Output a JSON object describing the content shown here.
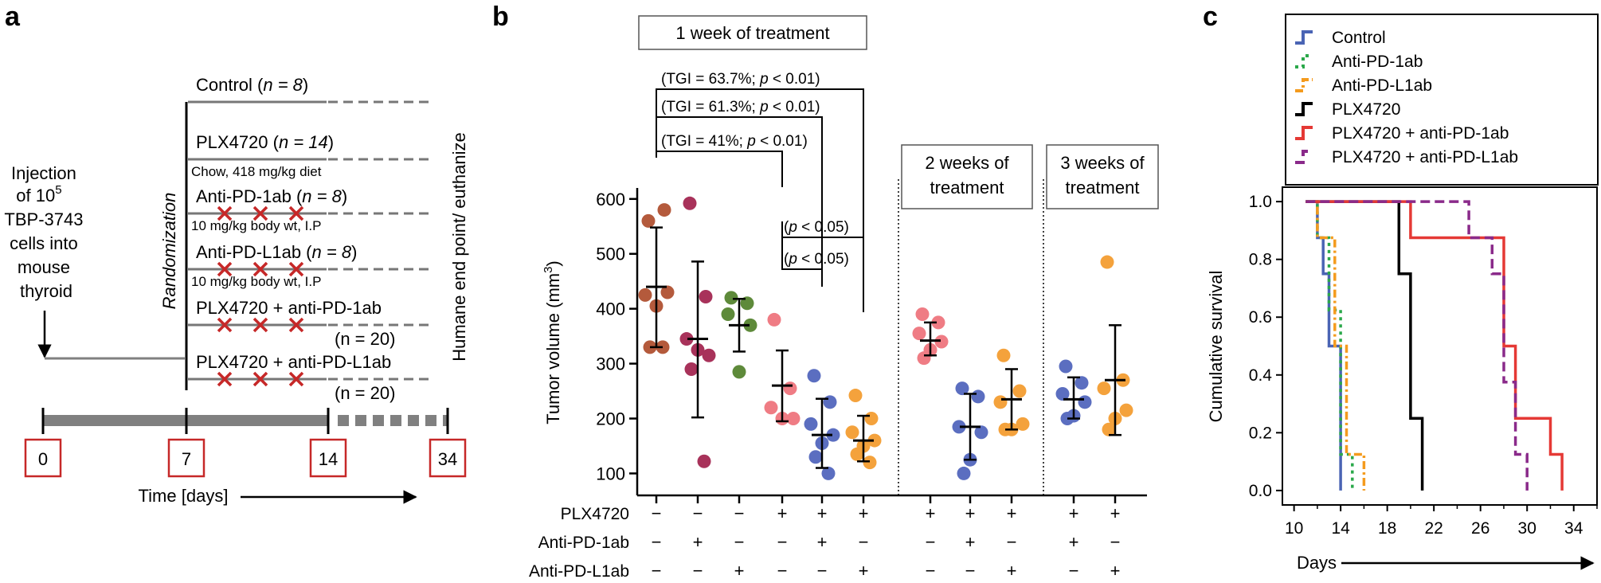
{
  "panel_a": {
    "letter": "a",
    "injection_lines": [
      "Injection",
      "of 10",
      "5",
      "TBP-3743",
      "cells into",
      "mouse",
      "thyroid"
    ],
    "randomization": "Randomization",
    "endpoint": "Humane end point/ euthanize",
    "arms": [
      {
        "name": "Control (n = 8)",
        "name_main": "Control (",
        "n_label": "n = 8",
        "name_end": ")",
        "note": "",
        "x_marks": 0
      },
      {
        "name": "PLX4720 (n = 14)",
        "name_main": "PLX4720 (",
        "n_label": "n = 14",
        "name_end": ")",
        "note": "Chow, 418 mg/kg diet",
        "x_marks": 0
      },
      {
        "name": "Anti-PD-1ab (n = 8)",
        "name_main": "Anti-PD-1ab (",
        "n_label": "n = 8",
        "name_end": ")",
        "note": "10 mg/kg body wt, I.P",
        "x_marks": 3
      },
      {
        "name": "Anti-PD-L1ab (n = 8)",
        "name_main": "Anti-PD-L1ab (",
        "n_label": "n = 8",
        "name_end": ")",
        "note": "10 mg/kg body wt, I.P",
        "x_marks": 3
      },
      {
        "name": "PLX4720 + anti-PD-1ab (n = 20)",
        "name_main": "PLX4720 + anti-PD-1ab",
        "n_label": "(n = 20)",
        "name_end": "",
        "note": "",
        "x_marks": 3
      },
      {
        "name": "PLX4720 + anti-PD-L1ab (n = 20)",
        "name_main": "PLX4720 + anti-PD-L1ab",
        "n_label": "(n = 20)",
        "name_end": "",
        "note": "",
        "x_marks": 3
      }
    ],
    "timeline_days": [
      "0",
      "7",
      "14",
      "34"
    ],
    "time_label": "Time [days]",
    "colors": {
      "mark": "#c62828",
      "box": "#c62828",
      "line": "#777777",
      "bar": "#808080"
    }
  },
  "panel_b": {
    "letter": "b",
    "chart_data": {
      "type": "scatter",
      "ylabel": "Tumor volume (mm3)",
      "ylabel_main": "Tumor volume (mm",
      "ylabel_sup": "3",
      "ylabel_end": ")",
      "ylim": [
        60,
        620
      ],
      "yticks": [
        100,
        200,
        300,
        400,
        500,
        600
      ],
      "section_labels": [
        [
          "1 week of treatment"
        ],
        [
          "2 weeks of",
          "treatment"
        ],
        [
          "3 weeks of",
          "treatment"
        ]
      ],
      "row_labels": [
        "PLX4720",
        "Anti-PD-1ab",
        "Anti-PD-L1ab"
      ],
      "groups": [
        {
          "section": 0,
          "pos": 0,
          "color": "#b45a3c",
          "points": [
            560,
            580,
            425,
            430,
            405,
            330,
            330
          ],
          "mean": 440,
          "sd_low": 330,
          "sd_high": 548,
          "signs": [
            "−",
            "−",
            "−"
          ]
        },
        {
          "section": 0,
          "pos": 1,
          "color": "#a8325a",
          "points": [
            592,
            422,
            345,
            315,
            325,
            290,
            122
          ],
          "mean": 345,
          "sd_low": 202,
          "sd_high": 486,
          "signs": [
            "−",
            "+",
            "−"
          ]
        },
        {
          "section": 0,
          "pos": 2,
          "color": "#5e8a3a",
          "points": [
            420,
            410,
            390,
            370,
            285
          ],
          "mean": 370,
          "sd_low": 322,
          "sd_high": 418,
          "signs": [
            "−",
            "−",
            "+"
          ]
        },
        {
          "section": 0,
          "pos": 3,
          "color": "#ef7c84",
          "points": [
            380,
            255,
            220,
            200,
            200
          ],
          "mean": 260,
          "sd_low": 195,
          "sd_high": 324,
          "signs": [
            "+",
            "−",
            "−"
          ]
        },
        {
          "section": 0,
          "pos": 4,
          "color": "#5b6ec0",
          "points": [
            278,
            230,
            190,
            170,
            155,
            130,
            100
          ],
          "mean": 170,
          "sd_low": 110,
          "sd_high": 236,
          "signs": [
            "+",
            "+",
            "−"
          ]
        },
        {
          "section": 0,
          "pos": 5,
          "color": "#f4a23c",
          "points": [
            242,
            200,
            175,
            160,
            150,
            135,
            120
          ],
          "mean": 160,
          "sd_low": 122,
          "sd_high": 205,
          "signs": [
            "+",
            "−",
            "+"
          ]
        },
        {
          "section": 1,
          "pos": 0,
          "color": "#ef7c84",
          "points": [
            390,
            375,
            355,
            340,
            325,
            310
          ],
          "mean": 342,
          "sd_low": 315,
          "sd_high": 375,
          "signs": [
            "+",
            "−",
            "−"
          ]
        },
        {
          "section": 1,
          "pos": 1,
          "color": "#5b6ec0",
          "points": [
            255,
            240,
            185,
            175,
            125,
            100
          ],
          "mean": 185,
          "sd_low": 125,
          "sd_high": 245,
          "signs": [
            "+",
            "+",
            "−"
          ]
        },
        {
          "section": 1,
          "pos": 2,
          "color": "#f4a23c",
          "points": [
            315,
            250,
            230,
            190,
            180,
            180
          ],
          "mean": 235,
          "sd_low": 180,
          "sd_high": 290,
          "signs": [
            "+",
            "−",
            "+"
          ]
        },
        {
          "section": 2,
          "pos": 0,
          "color": "#5b6ec0",
          "points": [
            295,
            265,
            245,
            230,
            205,
            200
          ],
          "mean": 235,
          "sd_low": 200,
          "sd_high": 275,
          "signs": [
            "+",
            "+",
            "−"
          ]
        },
        {
          "section": 2,
          "pos": 1,
          "color": "#f4a23c",
          "points": [
            485,
            270,
            255,
            215,
            200,
            180
          ],
          "mean": 270,
          "sd_low": 170,
          "sd_high": 370,
          "signs": [
            "+",
            "−",
            "+"
          ]
        }
      ],
      "brackets": [
        {
          "from": 0,
          "to": 5,
          "label_pre": "(TGI = 63.7%; ",
          "label_p": "p",
          "label_post": " < 0.01)",
          "label": "(TGI = 63.7%; p < 0.01)"
        },
        {
          "from": 0,
          "to": 4,
          "label_pre": "(TGI = 61.3%; ",
          "label_p": "p",
          "label_post": " < 0.01)",
          "label": "(TGI = 61.3%; p < 0.01)"
        },
        {
          "from": 0,
          "to": 3,
          "label_pre": "(TGI = 41%; ",
          "label_p": "p",
          "label_post": " < 0.01)",
          "label": "(TGI = 41%; p < 0.01)"
        },
        {
          "from": 3,
          "to": 5,
          "label_pre": "(",
          "label_p": "p",
          "label_post": " < 0.05)",
          "label": "(p < 0.05)"
        },
        {
          "from": 3,
          "to": 4,
          "label_pre": "(",
          "label_p": "p",
          "label_post": " < 0.05)",
          "label": "(p < 0.05)"
        }
      ]
    }
  },
  "panel_c": {
    "letter": "c",
    "chart_data": {
      "type": "line",
      "step": true,
      "xlabel": "Days",
      "ylabel": "Cumulative survival",
      "xlim": [
        9,
        36
      ],
      "ylim": [
        -0.05,
        1.05
      ],
      "xticks": [
        10,
        14,
        18,
        22,
        26,
        30,
        34
      ],
      "yticks": [
        "0.0",
        "0.2",
        "0.4",
        "0.6",
        "0.8",
        "1.0"
      ],
      "legend_position": "top-right",
      "series": [
        {
          "name": "Control",
          "color": "#4a64b4",
          "dash": "solid",
          "points": [
            [
              11,
              1.0
            ],
            [
              12,
              1.0
            ],
            [
              12,
              0.875
            ],
            [
              12.5,
              0.875
            ],
            [
              12.5,
              0.75
            ],
            [
              13,
              0.75
            ],
            [
              13,
              0.5
            ],
            [
              14,
              0.5
            ],
            [
              14,
              0.0
            ]
          ]
        },
        {
          "name": "Anti-PD-1ab",
          "color": "#2aa84a",
          "dash": "dot",
          "points": [
            [
              11,
              1.0
            ],
            [
              12,
              1.0
            ],
            [
              12,
              0.875
            ],
            [
              13,
              0.875
            ],
            [
              13,
              0.625
            ],
            [
              14,
              0.625
            ],
            [
              14,
              0.125
            ],
            [
              15,
              0.125
            ],
            [
              15,
              0.0
            ]
          ]
        },
        {
          "name": "Anti-PD-L1ab",
          "color": "#f49b1e",
          "dash": "dashdot",
          "points": [
            [
              11,
              1.0
            ],
            [
              12,
              1.0
            ],
            [
              12,
              0.875
            ],
            [
              13.5,
              0.875
            ],
            [
              13.5,
              0.5
            ],
            [
              14.5,
              0.5
            ],
            [
              14.5,
              0.125
            ],
            [
              16,
              0.125
            ],
            [
              16,
              0.0
            ]
          ]
        },
        {
          "name": "PLX4720",
          "color": "#000000",
          "dash": "solid",
          "points": [
            [
              11,
              1.0
            ],
            [
              19,
              1.0
            ],
            [
              19,
              0.75
            ],
            [
              20,
              0.75
            ],
            [
              20,
              0.25
            ],
            [
              21,
              0.25
            ],
            [
              21,
              0.0
            ]
          ]
        },
        {
          "name": "PLX4720 + anti-PD-1ab",
          "color": "#e53935",
          "dash": "solid",
          "points": [
            [
              11,
              1.0
            ],
            [
              20,
              1.0
            ],
            [
              20,
              0.875
            ],
            [
              28,
              0.875
            ],
            [
              28,
              0.5
            ],
            [
              29,
              0.5
            ],
            [
              29,
              0.25
            ],
            [
              32,
              0.25
            ],
            [
              32,
              0.125
            ],
            [
              33,
              0.125
            ],
            [
              33,
              0.0
            ]
          ]
        },
        {
          "name": "PLX4720 + anti-PD-L1ab",
          "color": "#8a2a8a",
          "dash": "dash",
          "points": [
            [
              11,
              1.0
            ],
            [
              25,
              1.0
            ],
            [
              25,
              0.875
            ],
            [
              27,
              0.875
            ],
            [
              27,
              0.75
            ],
            [
              28,
              0.75
            ],
            [
              28,
              0.375
            ],
            [
              29,
              0.375
            ],
            [
              29,
              0.125
            ],
            [
              30,
              0.125
            ],
            [
              30,
              0.0
            ]
          ]
        }
      ]
    }
  }
}
